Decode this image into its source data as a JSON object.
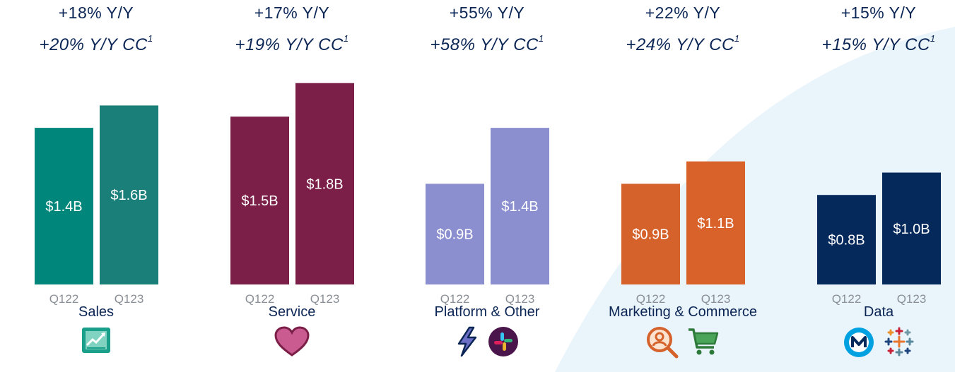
{
  "chart_data": {
    "type": "bar",
    "ylim": [
      0,
      1.9
    ],
    "colors": {
      "Sales": [
        "#00867a",
        "#1b7f79"
      ],
      "Service": [
        "#7c1f48",
        "#7c1f48"
      ],
      "Platform & Other": [
        "#8b8fcf",
        "#8b8fcf"
      ],
      "Marketing & Commerce": [
        "#d5622b",
        "#d9622b"
      ],
      "Data": [
        "#06295c",
        "#06295c"
      ]
    },
    "groups": [
      {
        "category": "Sales",
        "yoy": "+18% Y/Y",
        "yoy_cc": "+20% Y/Y CC",
        "cc_footnote": "1",
        "x": [
          "Q122",
          "Q123"
        ],
        "values": [
          1.4,
          1.6
        ],
        "labels": [
          "$1.4B",
          "$1.6B"
        ],
        "icons": [
          "sales-chart-icon"
        ]
      },
      {
        "category": "Service",
        "yoy": "+17% Y/Y",
        "yoy_cc": "+19% Y/Y CC",
        "cc_footnote": "1",
        "x": [
          "Q122",
          "Q123"
        ],
        "values": [
          1.5,
          1.8
        ],
        "labels": [
          "$1.5B",
          "$1.8B"
        ],
        "icons": [
          "heart-icon"
        ]
      },
      {
        "category": "Platform & Other",
        "yoy": "+55% Y/Y",
        "yoy_cc": "+58% Y/Y CC",
        "cc_footnote": "1",
        "x": [
          "Q122",
          "Q123"
        ],
        "values": [
          0.9,
          1.4
        ],
        "labels": [
          "$0.9B",
          "$1.4B"
        ],
        "icons": [
          "lightning-icon",
          "slack-icon"
        ]
      },
      {
        "category": "Marketing & Commerce",
        "yoy": "+22% Y/Y",
        "yoy_cc": "+24% Y/Y CC",
        "cc_footnote": "1",
        "x": [
          "Q122",
          "Q123"
        ],
        "values": [
          0.9,
          1.1
        ],
        "labels": [
          "$0.9B",
          "$1.1B"
        ],
        "icons": [
          "person-search-icon",
          "shopping-cart-icon"
        ]
      },
      {
        "category": "Data",
        "yoy": "+15% Y/Y",
        "yoy_cc": "+15% Y/Y CC",
        "cc_footnote": "1",
        "x": [
          "Q122",
          "Q123"
        ],
        "values": [
          0.8,
          1.0
        ],
        "labels": [
          "$0.8B",
          "$1.0B"
        ],
        "icons": [
          "mulesoft-icon",
          "tableau-icon"
        ]
      }
    ]
  }
}
